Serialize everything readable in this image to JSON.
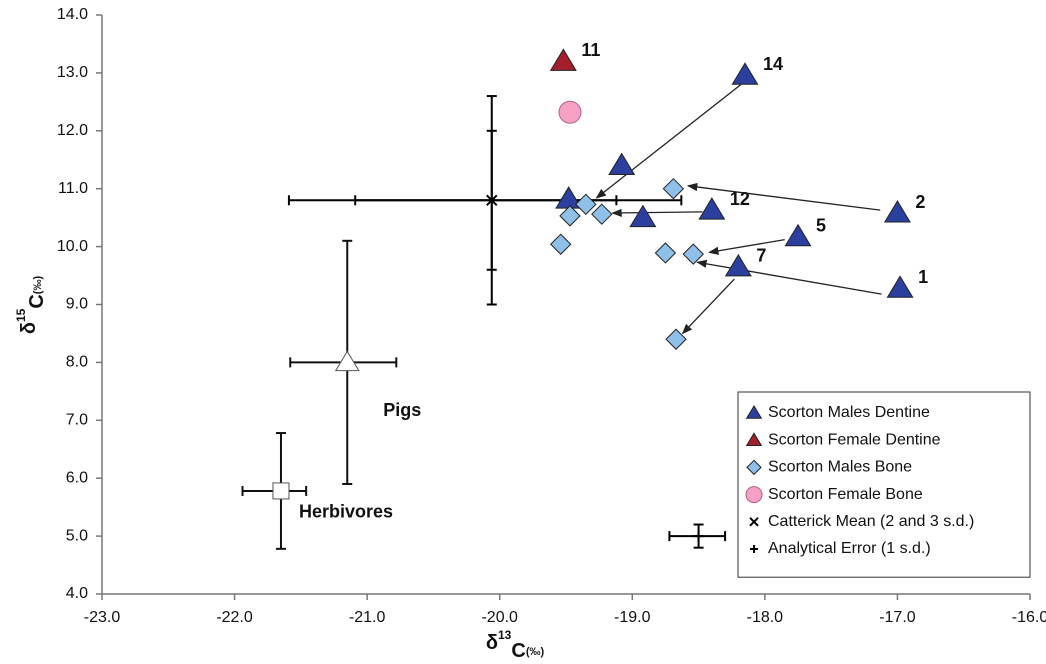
{
  "chart_data": {
    "type": "scatter",
    "xlabel": {
      "main": "δ",
      "sup": "13",
      "base": "C",
      "sub": "(‰)"
    },
    "ylabel": {
      "main": "δ",
      "sup": "15",
      "base": "C",
      "sub": "(‰)"
    },
    "xlim": [
      -23,
      -16
    ],
    "ylim": [
      4,
      14
    ],
    "xticks": [
      {
        "value": -23,
        "label": "-23.0"
      },
      {
        "value": -22,
        "label": "-22.0"
      },
      {
        "value": -21,
        "label": "-21.0"
      },
      {
        "value": -20,
        "label": "-20.0"
      },
      {
        "value": -19,
        "label": "-19.0"
      },
      {
        "value": -18,
        "label": "-18.0"
      },
      {
        "value": -17,
        "label": "-17.0"
      },
      {
        "value": -16,
        "label": "-16.0"
      }
    ],
    "yticks": [
      {
        "value": 4,
        "label": "4.0"
      },
      {
        "value": 5,
        "label": "5.0"
      },
      {
        "value": 6,
        "label": "6.0"
      },
      {
        "value": 7,
        "label": "7.0"
      },
      {
        "value": 8,
        "label": "8.0"
      },
      {
        "value": 9,
        "label": "9.0"
      },
      {
        "value": 10,
        "label": "10.0"
      },
      {
        "value": 11,
        "label": "11.0"
      },
      {
        "value": 12,
        "label": "12.0"
      },
      {
        "value": 13,
        "label": "13.0"
      },
      {
        "value": 14,
        "label": "14.0"
      }
    ],
    "grid": false,
    "legend": "lower right",
    "series": [
      {
        "name": "Scorton Males Dentine",
        "color": "#2b3f9f",
        "marker": "triangle",
        "x": [
          -18.15,
          -17.0,
          -16.98,
          -17.75,
          -18.2,
          -18.4,
          -19.08,
          -19.48,
          -18.92
        ],
        "y": [
          12.96,
          10.58,
          9.28,
          10.17,
          9.65,
          10.63,
          11.4,
          10.82,
          10.5
        ],
        "labels": [
          "14",
          "2",
          "1",
          "5",
          "7",
          "12",
          null,
          null,
          null
        ]
      },
      {
        "name": "Scorton Female Dentine",
        "color": "#a31f2b",
        "marker": "triangle",
        "x": [
          -19.52
        ],
        "y": [
          13.2
        ],
        "labels": [
          "11"
        ]
      },
      {
        "name": "Scorton Males Bone",
        "color": "#8fc0ea",
        "marker": "diamond",
        "x": [
          -18.69,
          -19.47,
          -19.35,
          -19.23,
          -19.54,
          -18.75,
          -18.54,
          -18.67
        ],
        "y": [
          11.0,
          10.53,
          10.73,
          10.56,
          10.04,
          9.89,
          9.87,
          8.4
        ]
      },
      {
        "name": "Scorton Female Bone",
        "color": "#f5a0c6",
        "marker": "circle",
        "x": [
          -19.47
        ],
        "y": [
          12.32
        ]
      },
      {
        "name": "Catterick Mean (2 and 3 s.d.)",
        "color": "#000000",
        "marker": "x",
        "x": [
          -20.06
        ],
        "y": [
          10.8
        ],
        "x_ranges": [
          [
            -21.09,
            -19.12
          ],
          [
            -21.59,
            -18.63
          ]
        ],
        "y_ranges": [
          [
            9.6,
            12.0
          ],
          [
            9.0,
            12.6
          ]
        ]
      },
      {
        "name": "Analytical Error (1 s.d.)",
        "color": "#000000",
        "marker": "plus",
        "x": [
          -18.5
        ],
        "y": [
          5.0
        ],
        "x_ranges": [
          [
            -18.72,
            -18.3
          ]
        ],
        "y_ranges": [
          [
            4.8,
            5.2
          ]
        ]
      }
    ],
    "reference_groups": [
      {
        "name": "Pigs",
        "marker": "triangle",
        "x": -21.15,
        "y": 8.0,
        "x_range": [
          -21.58,
          -20.78
        ],
        "y_range": [
          5.9,
          10.1
        ]
      },
      {
        "name": "Herbivores",
        "marker": "square",
        "x": -21.65,
        "y": 5.78,
        "x_range": [
          -21.94,
          -21.46
        ],
        "y_range": [
          4.78,
          6.78
        ]
      }
    ],
    "arrows": [
      {
        "from": [
          -18.18,
          12.8
        ],
        "to": [
          -19.27,
          10.84
        ]
      },
      {
        "from": [
          -17.13,
          10.63
        ],
        "to": [
          -18.58,
          11.05
        ]
      },
      {
        "from": [
          -18.47,
          10.6
        ],
        "to": [
          -19.15,
          10.58
        ]
      },
      {
        "from": [
          -17.85,
          10.12
        ],
        "to": [
          -18.42,
          9.9
        ]
      },
      {
        "from": [
          -17.12,
          9.18
        ],
        "to": [
          -18.51,
          9.73
        ]
      },
      {
        "from": [
          -18.23,
          9.44
        ],
        "to": [
          -18.62,
          8.5
        ]
      }
    ]
  }
}
